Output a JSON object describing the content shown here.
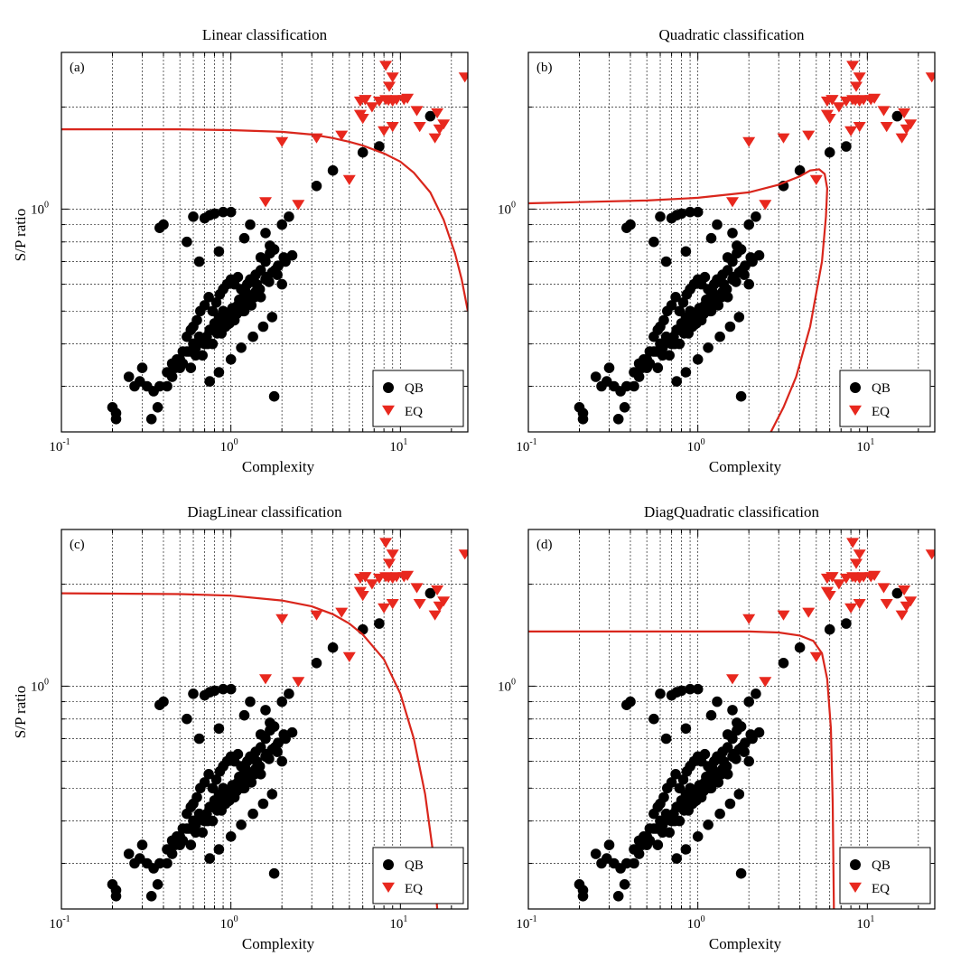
{
  "chart_data": [
    {
      "type": "scatter",
      "title": "Linear classification",
      "panel_label": "(a)",
      "xlabel": "Complexity",
      "ylabel": "S/P ratio",
      "xscale": "log",
      "yscale": "log",
      "xlim": [
        0.1,
        25
      ],
      "ylim": [
        0.22,
        2.9
      ],
      "grid": true,
      "legend": "bottom-right",
      "x_tick_labels": [
        {
          "base": "10",
          "exp": "-1"
        },
        {
          "base": "10",
          "exp": "0"
        },
        {
          "base": "10",
          "exp": "1"
        }
      ],
      "y_tick_labels": [
        {
          "base": "10",
          "exp": "0"
        }
      ],
      "series": [
        {
          "name": "QB",
          "marker": "circle",
          "color": "#000000",
          "x": [
            0.2,
            0.21,
            0.21,
            0.34,
            0.37,
            0.25,
            0.27,
            0.29,
            0.32,
            0.35,
            0.38,
            0.3,
            0.42,
            0.45,
            0.47,
            0.5,
            0.52,
            0.55,
            0.58,
            0.6,
            0.63,
            0.66,
            0.7,
            0.74,
            0.78,
            0.82,
            0.86,
            0.9,
            0.95,
            1.0,
            1.05,
            1.1,
            1.15,
            1.2,
            1.25,
            1.3,
            1.4,
            1.5,
            1.6,
            1.7,
            1.8,
            0.55,
            0.6,
            0.65,
            0.7,
            0.75,
            0.8,
            0.85,
            0.9,
            0.95,
            1.0,
            1.1,
            1.2,
            1.3,
            1.4,
            1.5,
            0.48,
            0.52,
            0.57,
            0.62,
            0.68,
            0.73,
            0.77,
            0.83,
            0.88,
            0.93,
            0.98,
            1.05,
            1.12,
            1.18,
            1.25,
            1.32,
            1.38,
            1.45,
            1.6,
            1.75,
            1.9,
            2.1,
            2.3,
            0.38,
            0.4,
            0.6,
            0.7,
            0.75,
            0.8,
            0.9,
            1.0,
            0.55,
            0.65,
            0.85,
            1.2,
            1.6,
            2.0,
            2.2,
            1.3,
            1.5,
            1.7,
            1.9,
            1.8,
            0.45,
            0.5,
            0.75,
            0.85,
            1.0,
            1.15,
            1.35,
            1.55,
            1.75,
            2.0,
            0.42,
            0.58,
            0.68,
            0.78,
            0.88,
            0.98,
            1.08,
            1.18,
            1.28,
            1.48,
            1.68,
            1.88,
            0.62,
            0.72,
            0.82,
            0.92,
            1.02,
            1.12,
            1.22,
            1.42,
            1.62,
            1.82,
            2.05,
            3.2,
            4.0,
            6.0,
            7.5,
            15.0
          ],
          "y": [
            0.26,
            0.25,
            0.24,
            0.24,
            0.26,
            0.32,
            0.3,
            0.31,
            0.3,
            0.29,
            0.3,
            0.34,
            0.33,
            0.35,
            0.34,
            0.36,
            0.38,
            0.42,
            0.44,
            0.45,
            0.47,
            0.5,
            0.52,
            0.55,
            0.5,
            0.53,
            0.56,
            0.58,
            0.6,
            0.62,
            0.6,
            0.63,
            0.58,
            0.56,
            0.6,
            0.62,
            0.64,
            0.66,
            0.7,
            0.74,
            0.76,
            0.38,
            0.4,
            0.42,
            0.4,
            0.44,
            0.46,
            0.48,
            0.5,
            0.47,
            0.49,
            0.52,
            0.5,
            0.54,
            0.57,
            0.55,
            0.36,
            0.35,
            0.38,
            0.37,
            0.41,
            0.4,
            0.44,
            0.43,
            0.46,
            0.45,
            0.48,
            0.47,
            0.51,
            0.5,
            0.53,
            0.52,
            0.55,
            0.58,
            0.62,
            0.65,
            0.68,
            0.7,
            0.73,
            0.88,
            0.9,
            0.95,
            0.94,
            0.96,
            0.97,
            0.98,
            0.98,
            0.8,
            0.7,
            0.75,
            0.82,
            0.85,
            0.9,
            0.95,
            0.9,
            0.72,
            0.78,
            0.68,
            0.28,
            0.32,
            0.34,
            0.31,
            0.33,
            0.36,
            0.39,
            0.42,
            0.45,
            0.48,
            0.6,
            0.3,
            0.34,
            0.37,
            0.4,
            0.43,
            0.46,
            0.49,
            0.52,
            0.55,
            0.58,
            0.61,
            0.64,
            0.39,
            0.42,
            0.45,
            0.48,
            0.51,
            0.54,
            0.57,
            0.6,
            0.63,
            0.66,
            0.72,
            1.17,
            1.3,
            1.47,
            1.53,
            1.88
          ]
        },
        {
          "name": "EQ",
          "marker": "triangle-down",
          "color": "#e8281e",
          "x": [
            8.2,
            8.6,
            9.0,
            6.2,
            6.8,
            5.8,
            6.2,
            7.5,
            8.2,
            8.5,
            9.0,
            9.5,
            10.5,
            11.0,
            5.8,
            6.0,
            12.5,
            13.0,
            16.5,
            17.0,
            18.0,
            8.0,
            9.0,
            16.0,
            24.0,
            2.0,
            3.2,
            4.5,
            5.0,
            1.6,
            2.5
          ],
          "y": [
            2.65,
            2.3,
            2.45,
            2.1,
            2.0,
            2.08,
            2.1,
            2.08,
            2.1,
            2.09,
            2.08,
            2.1,
            2.1,
            2.12,
            1.9,
            1.85,
            1.95,
            1.75,
            1.92,
            1.72,
            1.78,
            1.7,
            1.75,
            1.62,
            2.45,
            1.58,
            1.62,
            1.65,
            1.22,
            1.05,
            1.03
          ]
        }
      ],
      "boundary": [
        [
          0.1,
          1.72
        ],
        [
          0.5,
          1.72
        ],
        [
          1.0,
          1.71
        ],
        [
          2.0,
          1.69
        ],
        [
          3.0,
          1.66
        ],
        [
          4.0,
          1.62
        ],
        [
          5.0,
          1.58
        ],
        [
          6.0,
          1.54
        ],
        [
          8.0,
          1.46
        ],
        [
          10.0,
          1.38
        ],
        [
          12.0,
          1.28
        ],
        [
          15.0,
          1.12
        ],
        [
          18.0,
          0.93
        ],
        [
          21.0,
          0.74
        ],
        [
          23.0,
          0.62
        ],
        [
          25.0,
          0.5
        ]
      ]
    },
    {
      "type": "scatter",
      "title": "Quadratic classification",
      "panel_label": "(b)",
      "xlabel": "Complexity",
      "ylabel": "",
      "xscale": "log",
      "yscale": "log",
      "xlim": [
        0.1,
        25
      ],
      "ylim": [
        0.22,
        2.9
      ],
      "grid": true,
      "legend": "bottom-right",
      "x_tick_labels": [
        {
          "base": "10",
          "exp": "-1"
        },
        {
          "base": "10",
          "exp": "0"
        },
        {
          "base": "10",
          "exp": "1"
        }
      ],
      "y_tick_labels": [
        {
          "base": "10",
          "exp": "0"
        }
      ],
      "series": [
        {
          "name": "QB",
          "marker": "circle",
          "color": "#000000",
          "same_as_panel": 0
        },
        {
          "name": "EQ",
          "marker": "triangle-down",
          "color": "#e8281e",
          "same_as_panel": 0
        }
      ],
      "boundary": [
        [
          0.1,
          1.04
        ],
        [
          0.5,
          1.06
        ],
        [
          1.0,
          1.08
        ],
        [
          2.0,
          1.12
        ],
        [
          3.0,
          1.18
        ],
        [
          4.0,
          1.25
        ],
        [
          4.6,
          1.3
        ],
        [
          5.2,
          1.31
        ],
        [
          5.6,
          1.27
        ],
        [
          5.8,
          1.15
        ],
        [
          5.7,
          0.95
        ],
        [
          5.4,
          0.7
        ],
        [
          4.6,
          0.45
        ],
        [
          3.8,
          0.32
        ],
        [
          3.2,
          0.26
        ],
        [
          2.7,
          0.22
        ]
      ]
    },
    {
      "type": "scatter",
      "title": "DiagLinear classification",
      "panel_label": "(c)",
      "xlabel": "Complexity",
      "ylabel": "S/P ratio",
      "xscale": "log",
      "yscale": "log",
      "xlim": [
        0.1,
        25
      ],
      "ylim": [
        0.22,
        2.9
      ],
      "grid": true,
      "legend": "bottom-right",
      "x_tick_labels": [
        {
          "base": "10",
          "exp": "-1"
        },
        {
          "base": "10",
          "exp": "0"
        },
        {
          "base": "10",
          "exp": "1"
        }
      ],
      "y_tick_labels": [
        {
          "base": "10",
          "exp": "0"
        }
      ],
      "series": [
        {
          "name": "QB",
          "marker": "circle",
          "color": "#000000",
          "same_as_panel": 0
        },
        {
          "name": "EQ",
          "marker": "triangle-down",
          "color": "#e8281e",
          "same_as_panel": 0
        }
      ],
      "boundary": [
        [
          0.1,
          1.88
        ],
        [
          0.5,
          1.87
        ],
        [
          1.0,
          1.85
        ],
        [
          2.0,
          1.79
        ],
        [
          3.0,
          1.72
        ],
        [
          4.0,
          1.63
        ],
        [
          5.0,
          1.53
        ],
        [
          6.0,
          1.42
        ],
        [
          8.0,
          1.2
        ],
        [
          10.0,
          0.95
        ],
        [
          12.0,
          0.7
        ],
        [
          14.0,
          0.48
        ],
        [
          15.5,
          0.33
        ],
        [
          16.5,
          0.22
        ]
      ]
    },
    {
      "type": "scatter",
      "title": "DiagQuadratic classification",
      "panel_label": "(d)",
      "xlabel": "Complexity",
      "ylabel": "",
      "xscale": "log",
      "yscale": "log",
      "xlim": [
        0.1,
        25
      ],
      "ylim": [
        0.22,
        2.9
      ],
      "grid": true,
      "legend": "bottom-right",
      "x_tick_labels": [
        {
          "base": "10",
          "exp": "-1"
        },
        {
          "base": "10",
          "exp": "0"
        },
        {
          "base": "10",
          "exp": "1"
        }
      ],
      "y_tick_labels": [
        {
          "base": "10",
          "exp": "0"
        }
      ],
      "series": [
        {
          "name": "QB",
          "marker": "circle",
          "color": "#000000",
          "same_as_panel": 0
        },
        {
          "name": "EQ",
          "marker": "triangle-down",
          "color": "#e8281e",
          "same_as_panel": 0
        }
      ],
      "boundary": [
        [
          0.1,
          1.45
        ],
        [
          0.5,
          1.45
        ],
        [
          1.0,
          1.45
        ],
        [
          2.0,
          1.45
        ],
        [
          3.0,
          1.44
        ],
        [
          4.0,
          1.41
        ],
        [
          4.8,
          1.36
        ],
        [
          5.4,
          1.25
        ],
        [
          5.8,
          1.05
        ],
        [
          6.1,
          0.75
        ],
        [
          6.25,
          0.45
        ],
        [
          6.35,
          0.22
        ]
      ]
    }
  ]
}
